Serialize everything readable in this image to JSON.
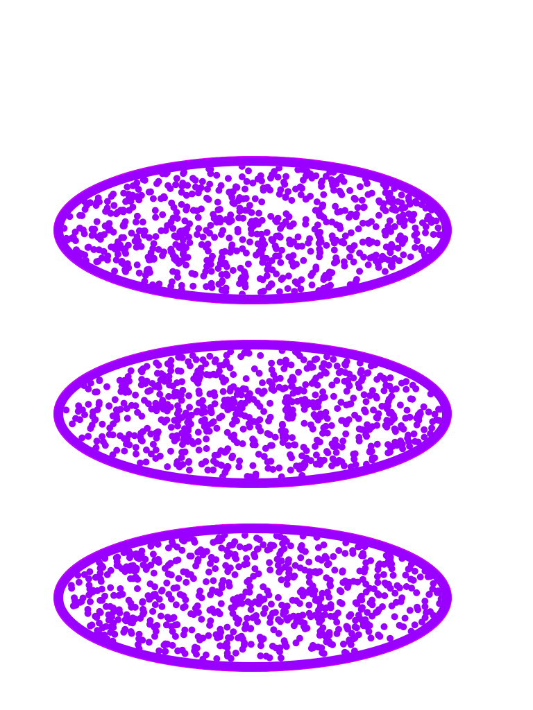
{
  "colors": {
    "background": "#ffffff",
    "particle": "#9900ff",
    "outline": "#9900ff",
    "outline_edge": "#e000ff"
  },
  "panels": [
    {
      "name": "ellipse-top",
      "particle_count": 720,
      "seed": 11
    },
    {
      "name": "ellipse-middle",
      "particle_count": 720,
      "seed": 29
    },
    {
      "name": "ellipse-bottom",
      "particle_count": 720,
      "seed": 47
    }
  ]
}
